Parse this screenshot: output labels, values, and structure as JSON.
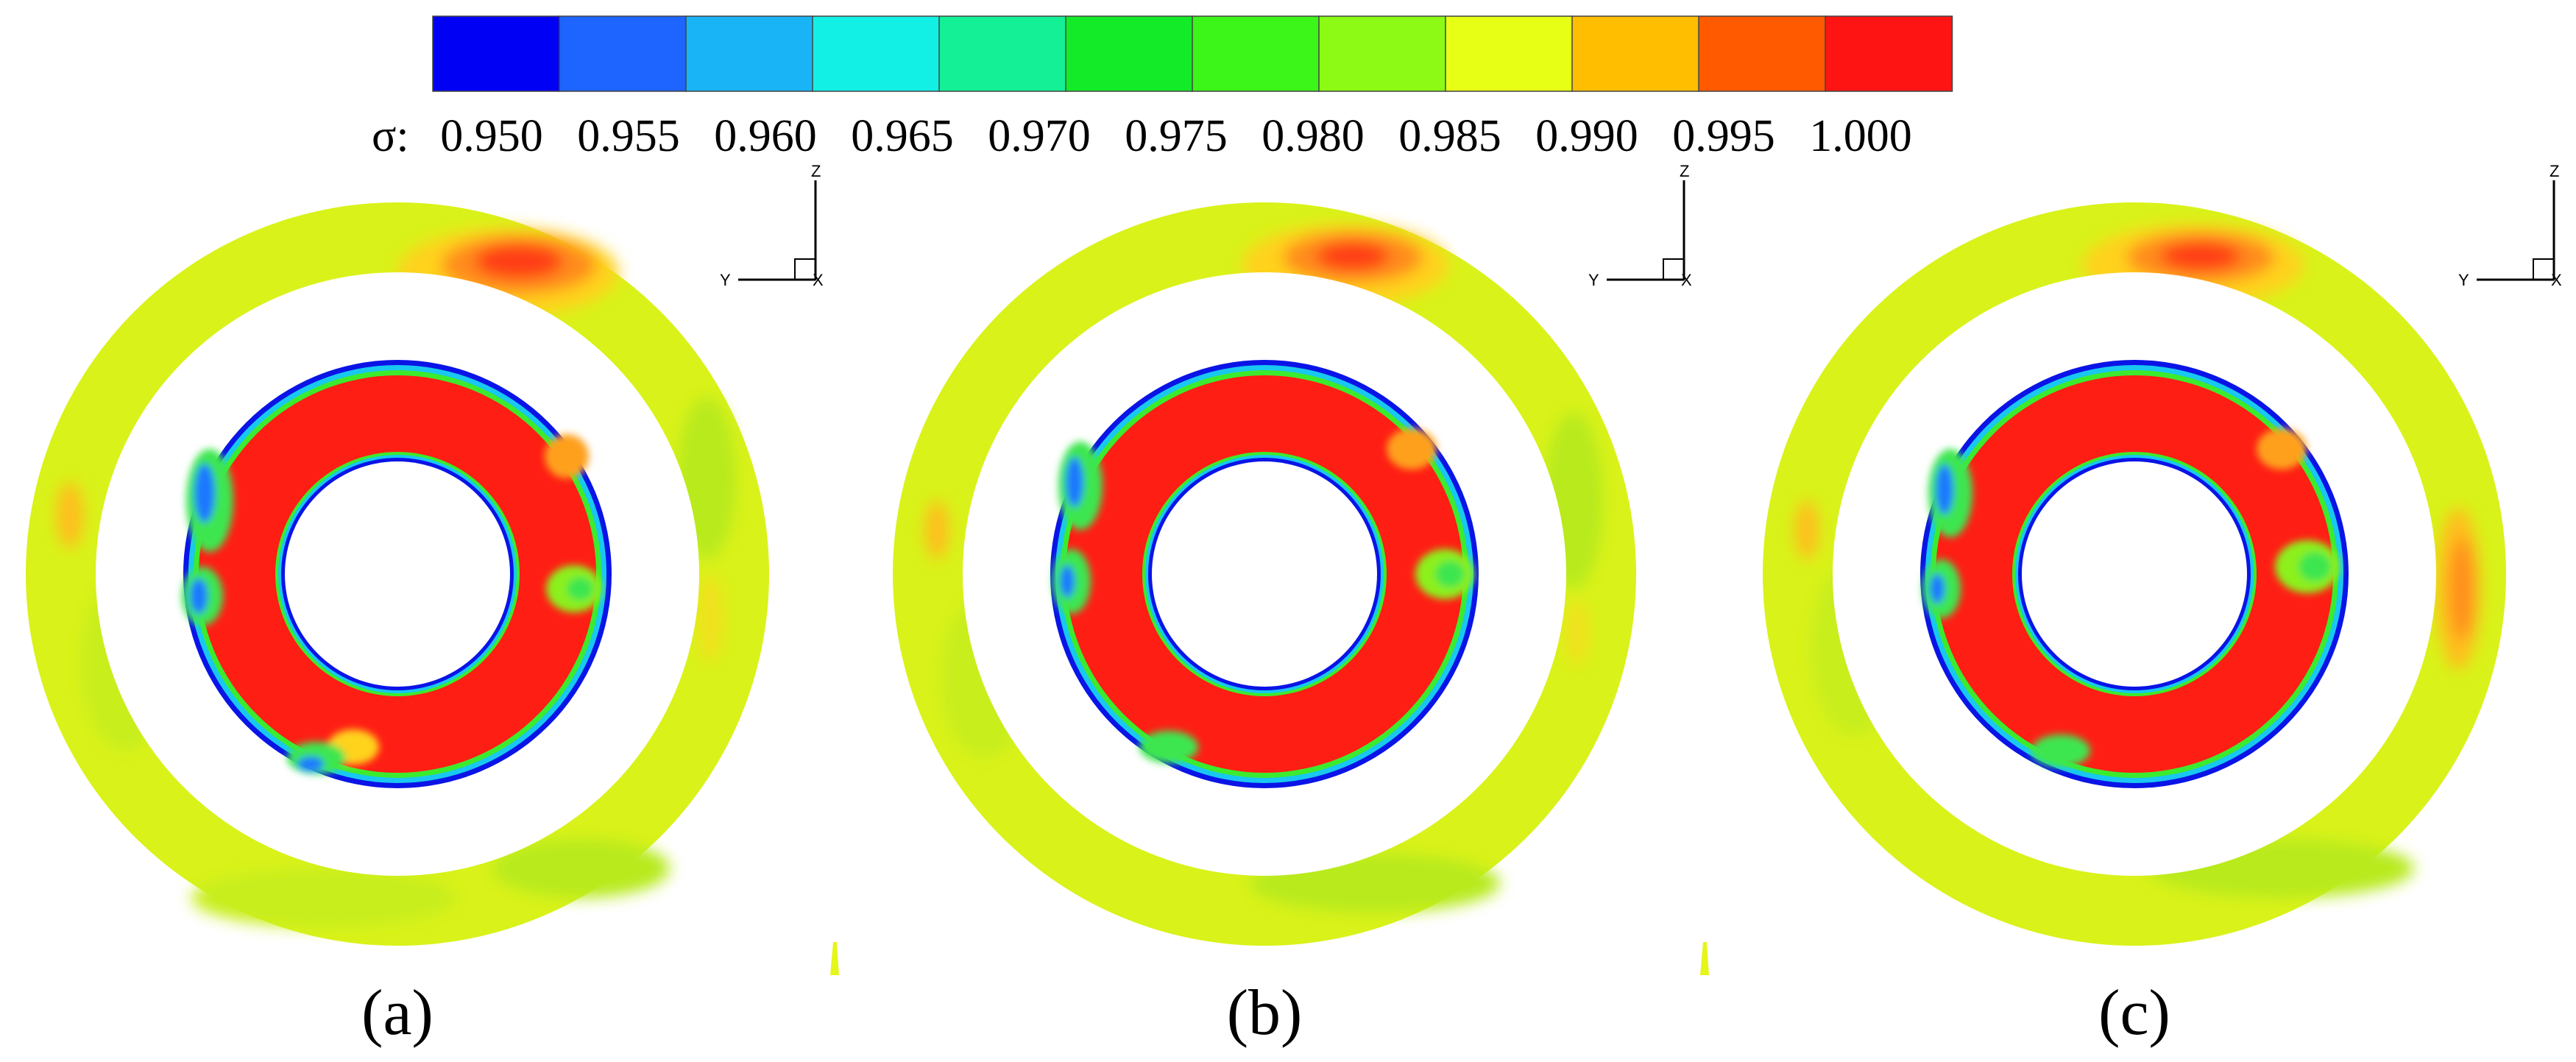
{
  "legend": {
    "symbol": "σ:",
    "ticks": [
      "0.950",
      "0.955",
      "0.960",
      "0.965",
      "0.970",
      "0.975",
      "0.980",
      "0.985",
      "0.990",
      "0.995",
      "1.000"
    ],
    "colors": [
      "#0000f5",
      "#1e64ff",
      "#19b4f5",
      "#12f0e6",
      "#14f096",
      "#14eb28",
      "#3cf519",
      "#8cfa14",
      "#e6ff14",
      "#ffbe00",
      "#ff5a00",
      "#ff1414"
    ]
  },
  "panels": [
    {
      "label": "(a)",
      "axis": {
        "vertical": "Z",
        "horizontal": "Y",
        "out": "X"
      }
    },
    {
      "label": "(b)",
      "axis": {
        "vertical": "Z",
        "horizontal": "Y",
        "out": "X"
      }
    },
    {
      "label": "(c)",
      "axis": {
        "vertical": "Z",
        "horizontal": "Y",
        "out": "X"
      }
    }
  ]
}
